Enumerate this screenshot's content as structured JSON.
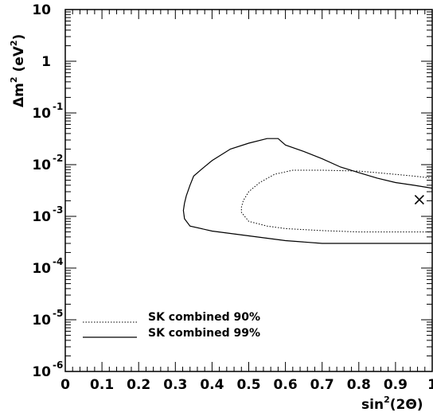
{
  "chart_data": {
    "type": "line",
    "x_label_text": "sin",
    "x_label_sup": "2",
    "x_label_arg": "(2Θ)",
    "y_label_text": "Δm",
    "y_label_sup": "2",
    "y_label_paren_open": " (eV",
    "y_label_sup2": "2",
    "y_label_paren_close": ")",
    "xlim": [
      0,
      1
    ],
    "ylim": [
      1e-06,
      10
    ],
    "y_scale": "log",
    "x_ticks": [
      "0",
      "0.1",
      "0.2",
      "0.3",
      "0.4",
      "0.5",
      "0.6",
      "0.7",
      "0.8",
      "0.9",
      "1"
    ],
    "y_ticks": [
      {
        "base": "10",
        "exp": "-6",
        "value": 1e-06
      },
      {
        "base": "10",
        "exp": "-5",
        "value": 1e-05
      },
      {
        "base": "10",
        "exp": "-4",
        "value": 0.0001
      },
      {
        "base": "10",
        "exp": "-3",
        "value": 0.001
      },
      {
        "base": "10",
        "exp": "-2",
        "value": 0.01
      },
      {
        "base": "10",
        "exp": "-1",
        "value": 0.1
      },
      {
        "base": "1",
        "exp": "",
        "value": 1
      },
      {
        "base": "10",
        "exp": "",
        "value": 10
      }
    ],
    "legend_placement": "bottom-left",
    "series": [
      {
        "name": "SK combined 90%",
        "style": "dotted",
        "color": "#000000",
        "points": [
          [
            1.0,
            0.0055
          ],
          [
            0.95,
            0.006
          ],
          [
            0.9,
            0.0065
          ],
          [
            0.85,
            0.007
          ],
          [
            0.8,
            0.0075
          ],
          [
            0.7,
            0.0078
          ],
          [
            0.62,
            0.0078
          ],
          [
            0.57,
            0.0065
          ],
          [
            0.53,
            0.0045
          ],
          [
            0.5,
            0.003
          ],
          [
            0.485,
            0.002
          ],
          [
            0.48,
            0.0015
          ],
          [
            0.48,
            0.0012
          ],
          [
            0.5,
            0.0008
          ],
          [
            0.55,
            0.00065
          ],
          [
            0.6,
            0.00058
          ],
          [
            0.7,
            0.00053
          ],
          [
            0.8,
            0.0005
          ],
          [
            0.9,
            0.0005
          ],
          [
            1.0,
            0.0005
          ]
        ]
      },
      {
        "name": "SK combined 99%",
        "style": "solid",
        "color": "#000000",
        "points": [
          [
            1.0,
            0.0035
          ],
          [
            0.95,
            0.004
          ],
          [
            0.9,
            0.0045
          ],
          [
            0.85,
            0.0055
          ],
          [
            0.8,
            0.007
          ],
          [
            0.75,
            0.009
          ],
          [
            0.7,
            0.013
          ],
          [
            0.65,
            0.018
          ],
          [
            0.6,
            0.024
          ],
          [
            0.58,
            0.032
          ],
          [
            0.55,
            0.032
          ],
          [
            0.5,
            0.026
          ],
          [
            0.45,
            0.02
          ],
          [
            0.4,
            0.012
          ],
          [
            0.37,
            0.008
          ],
          [
            0.35,
            0.006
          ],
          [
            0.34,
            0.004
          ],
          [
            0.33,
            0.0025
          ],
          [
            0.325,
            0.0018
          ],
          [
            0.322,
            0.0013
          ],
          [
            0.325,
            0.0009
          ],
          [
            0.34,
            0.00065
          ],
          [
            0.4,
            0.00052
          ],
          [
            0.5,
            0.00042
          ],
          [
            0.6,
            0.00034
          ],
          [
            0.7,
            0.0003
          ],
          [
            0.8,
            0.0003
          ],
          [
            0.9,
            0.0003
          ],
          [
            1.0,
            0.0003
          ]
        ]
      }
    ],
    "best_fit": {
      "marker": "x",
      "x": 0.965,
      "y": 0.0021
    }
  }
}
